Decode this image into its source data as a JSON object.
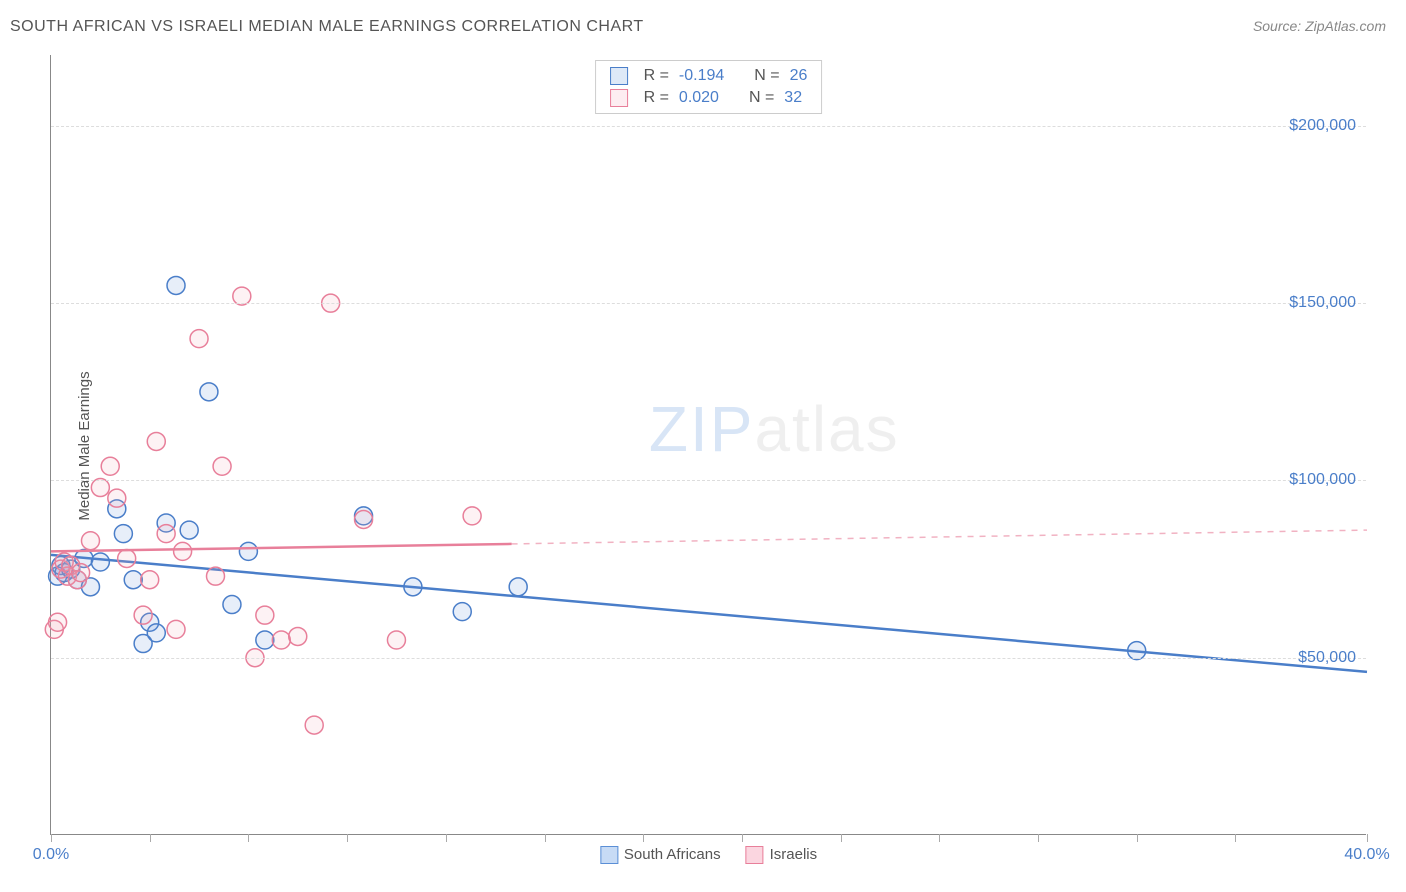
{
  "title": "SOUTH AFRICAN VS ISRAELI MEDIAN MALE EARNINGS CORRELATION CHART",
  "source": "Source: ZipAtlas.com",
  "ylabel": "Median Male Earnings",
  "watermark_zip": "ZIP",
  "watermark_atlas": "atlas",
  "chart": {
    "type": "scatter",
    "background_color": "#ffffff",
    "grid_color": "#e0e0e0",
    "axis_color": "#888888",
    "text_color": "#555555",
    "value_color": "#4a7ec9",
    "xlim": [
      0,
      40
    ],
    "ylim": [
      0,
      220000
    ],
    "xtick_positions": [
      0,
      3,
      6,
      9,
      12,
      15,
      18,
      21,
      24,
      27,
      30,
      33,
      36,
      40
    ],
    "xtick_labels": {
      "0": "0.0%",
      "40": "40.0%"
    },
    "ytick_positions": [
      50000,
      100000,
      150000,
      200000
    ],
    "ytick_labels": [
      "$50,000",
      "$100,000",
      "$150,000",
      "$200,000"
    ],
    "marker_radius": 9,
    "marker_stroke_width": 1.5,
    "marker_fill_opacity": 0.15,
    "line_width": 2.5,
    "series": [
      {
        "name": "South Africans",
        "color": "#5b8fd6",
        "stroke": "#4a7ec9",
        "R": "-0.194",
        "N": "26",
        "trend": {
          "y_start": 79000,
          "y_end": 46000,
          "dash_from_x": 40
        },
        "points": [
          [
            0.2,
            73000
          ],
          [
            0.3,
            76000
          ],
          [
            0.4,
            74000
          ],
          [
            0.6,
            75000
          ],
          [
            0.8,
            72000
          ],
          [
            1.0,
            78000
          ],
          [
            1.2,
            70000
          ],
          [
            1.5,
            77000
          ],
          [
            2.0,
            92000
          ],
          [
            2.2,
            85000
          ],
          [
            2.5,
            72000
          ],
          [
            2.8,
            54000
          ],
          [
            3.0,
            60000
          ],
          [
            3.2,
            57000
          ],
          [
            3.5,
            88000
          ],
          [
            3.8,
            155000
          ],
          [
            4.2,
            86000
          ],
          [
            4.8,
            125000
          ],
          [
            5.5,
            65000
          ],
          [
            6.0,
            80000
          ],
          [
            6.5,
            55000
          ],
          [
            9.5,
            90000
          ],
          [
            11.0,
            70000
          ],
          [
            12.5,
            63000
          ],
          [
            14.2,
            70000
          ],
          [
            33.0,
            52000
          ]
        ]
      },
      {
        "name": "Israelis",
        "color": "#f4a6b8",
        "stroke": "#e87f9a",
        "R": "0.020",
        "N": "32",
        "trend": {
          "y_start": 80000,
          "y_end": 86000,
          "dash_from_x": 14
        },
        "points": [
          [
            0.1,
            58000
          ],
          [
            0.2,
            60000
          ],
          [
            0.3,
            75000
          ],
          [
            0.4,
            77000
          ],
          [
            0.5,
            73000
          ],
          [
            0.6,
            76000
          ],
          [
            0.8,
            72000
          ],
          [
            0.9,
            74000
          ],
          [
            1.2,
            83000
          ],
          [
            1.5,
            98000
          ],
          [
            1.8,
            104000
          ],
          [
            2.0,
            95000
          ],
          [
            2.3,
            78000
          ],
          [
            2.8,
            62000
          ],
          [
            3.0,
            72000
          ],
          [
            3.2,
            111000
          ],
          [
            3.5,
            85000
          ],
          [
            3.8,
            58000
          ],
          [
            4.0,
            80000
          ],
          [
            4.5,
            140000
          ],
          [
            5.0,
            73000
          ],
          [
            5.2,
            104000
          ],
          [
            5.8,
            152000
          ],
          [
            6.2,
            50000
          ],
          [
            6.5,
            62000
          ],
          [
            7.0,
            55000
          ],
          [
            7.5,
            56000
          ],
          [
            8.0,
            31000
          ],
          [
            8.5,
            150000
          ],
          [
            9.5,
            89000
          ],
          [
            10.5,
            55000
          ],
          [
            12.8,
            90000
          ]
        ]
      }
    ],
    "legend_bottom": [
      {
        "label": "South Africans",
        "fill": "#c7dbf5",
        "stroke": "#5b8fd6"
      },
      {
        "label": "Israelis",
        "fill": "#fbd6e0",
        "stroke": "#e87f9a"
      }
    ]
  }
}
